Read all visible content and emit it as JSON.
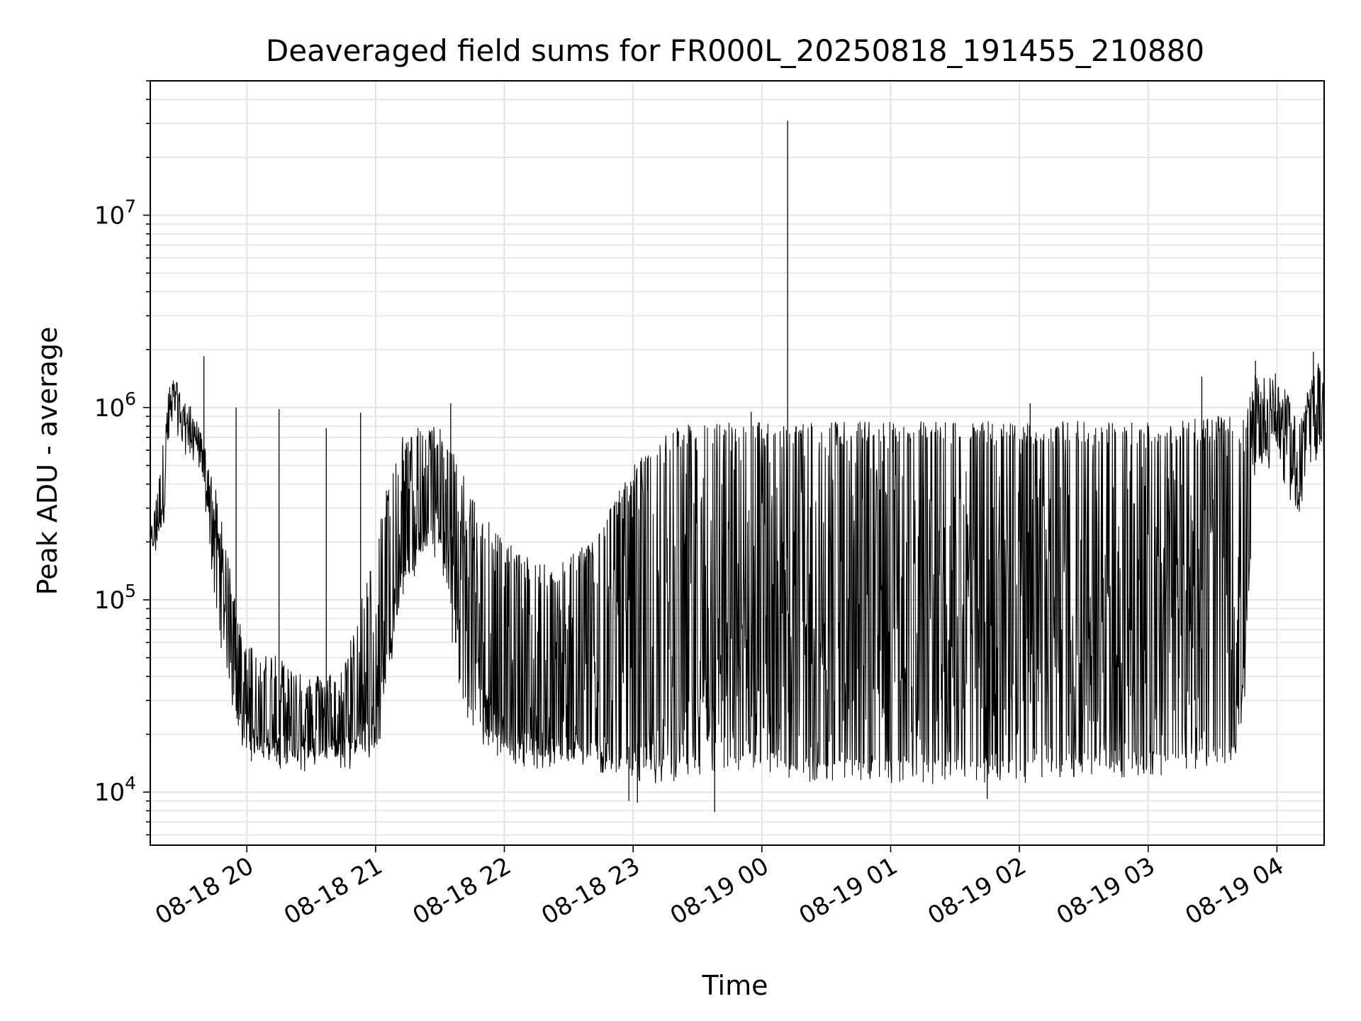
{
  "chart_data": {
    "type": "line",
    "title": "Deaveraged field sums for FR000L_20250818_191455_210880",
    "xlabel": "Time",
    "ylabel": "Peak ADU - average",
    "yscale": "log",
    "grid": true,
    "legend": "none",
    "line_color": "#000000",
    "xlim": [
      "2025-08-18T19:15:00",
      "2025-08-19T04:22:00"
    ],
    "ylim": [
      5300,
      50000000
    ],
    "x_ticks": [
      {
        "value": "2025-08-18T20:00:00",
        "label": "08-18 20"
      },
      {
        "value": "2025-08-18T21:00:00",
        "label": "08-18 21"
      },
      {
        "value": "2025-08-18T22:00:00",
        "label": "08-18 22"
      },
      {
        "value": "2025-08-18T23:00:00",
        "label": "08-18 23"
      },
      {
        "value": "2025-08-19T00:00:00",
        "label": "08-19 00"
      },
      {
        "value": "2025-08-19T01:00:00",
        "label": "08-19 01"
      },
      {
        "value": "2025-08-19T02:00:00",
        "label": "08-19 02"
      },
      {
        "value": "2025-08-19T03:00:00",
        "label": "08-19 03"
      },
      {
        "value": "2025-08-19T04:00:00",
        "label": "08-19 04"
      }
    ],
    "y_ticks": [
      {
        "value": 10000,
        "base": "10",
        "exp": "4"
      },
      {
        "value": 100000,
        "base": "10",
        "exp": "5"
      },
      {
        "value": 1000000,
        "base": "10",
        "exp": "6"
      },
      {
        "value": 10000000,
        "base": "10",
        "exp": "7"
      }
    ],
    "series": [
      {
        "x": [
          "2025-08-18T19:15:00",
          "2025-08-18T19:18:00",
          "2025-08-18T19:21:00",
          "2025-08-18T19:24:00",
          "2025-08-18T19:27:00",
          "2025-08-18T19:30:00",
          "2025-08-18T19:35:00",
          "2025-08-18T19:40:00",
          "2025-08-18T19:45:00",
          "2025-08-18T19:50:00",
          "2025-08-18T19:55:00",
          "2025-08-18T20:00:00",
          "2025-08-18T20:15:00",
          "2025-08-18T20:30:00",
          "2025-08-18T20:45:00",
          "2025-08-18T21:00:00",
          "2025-08-18T21:10:00",
          "2025-08-18T21:20:00",
          "2025-08-18T21:30:00",
          "2025-08-18T21:40:00",
          "2025-08-18T21:50:00",
          "2025-08-18T22:00:00",
          "2025-08-18T22:20:00",
          "2025-08-18T22:40:00",
          "2025-08-18T23:00:00",
          "2025-08-18T23:20:00",
          "2025-08-18T23:40:00",
          "2025-08-19T00:00:00",
          "2025-08-19T00:10:00",
          "2025-08-19T00:20:00",
          "2025-08-19T00:40:00",
          "2025-08-19T01:00:00",
          "2025-08-19T01:20:00",
          "2025-08-19T01:40:00",
          "2025-08-19T02:00:00",
          "2025-08-19T02:20:00",
          "2025-08-19T02:40:00",
          "2025-08-19T03:00:00",
          "2025-08-19T03:20:00",
          "2025-08-19T03:40:00",
          "2025-08-19T03:45:00",
          "2025-08-19T03:50:00",
          "2025-08-19T04:00:00",
          "2025-08-19T04:10:00",
          "2025-08-19T04:20:00",
          "2025-08-19T04:22:00"
        ],
        "y": [
          190000,
          220000,
          350000,
          1000000,
          1300000,
          900000,
          800000,
          550000,
          250000,
          90000,
          45000,
          24000,
          20000,
          19000,
          20000,
          25000,
          120000,
          280000,
          300000,
          180000,
          40000,
          25000,
          20000,
          19000,
          17000,
          30000,
          60000,
          70000,
          90000,
          80000,
          85000,
          80000,
          70000,
          90000,
          100000,
          80000,
          90000,
          100000,
          110000,
          120000,
          45000,
          800000,
          950000,
          450000,
          1200000,
          800000
        ],
        "y_upper": [
          220000,
          400000,
          700000,
          1400000,
          1400000,
          1100000,
          1000000,
          650000,
          400000,
          200000,
          100000,
          60000,
          50000,
          40000,
          45000,
          200000,
          700000,
          800000,
          800000,
          500000,
          300000,
          200000,
          150000,
          200000,
          500000,
          800000,
          850000,
          850000,
          850000,
          850000,
          850000,
          850000,
          850000,
          850000,
          850000,
          850000,
          850000,
          850000,
          900000,
          900000,
          900000,
          1500000,
          1500000,
          900000,
          1800000,
          1300000
        ],
        "y_lower": [
          180000,
          190000,
          250000,
          800000,
          900000,
          700000,
          600000,
          400000,
          120000,
          45000,
          25000,
          17000,
          15000,
          15000,
          15000,
          16000,
          80000,
          180000,
          200000,
          30000,
          20000,
          17000,
          15000,
          15000,
          13000,
          13000,
          14000,
          14000,
          14000,
          13000,
          13000,
          13000,
          13000,
          13000,
          13000,
          14000,
          14000,
          14000,
          15000,
          17000,
          30000,
          500000,
          600000,
          300000,
          700000,
          550000
        ],
        "spikes": [
          {
            "x": "2025-08-18T19:40:00",
            "y": 1850000
          },
          {
            "x": "2025-08-18T19:55:00",
            "y": 1000000
          },
          {
            "x": "2025-08-18T20:15:00",
            "y": 980000
          },
          {
            "x": "2025-08-18T20:37:00",
            "y": 780000
          },
          {
            "x": "2025-08-18T20:53:00",
            "y": 940000
          },
          {
            "x": "2025-08-18T21:35:00",
            "y": 1050000
          },
          {
            "x": "2025-08-18T23:55:00",
            "y": 950000
          },
          {
            "x": "2025-08-19T00:12:00",
            "y": 31000000
          },
          {
            "x": "2025-08-19T02:05:00",
            "y": 1050000
          },
          {
            "x": "2025-08-19T03:25:00",
            "y": 1450000
          },
          {
            "x": "2025-08-19T03:50:00",
            "y": 1750000
          },
          {
            "x": "2025-08-19T04:17:00",
            "y": 1950000
          }
        ],
        "dips": [
          {
            "x": "2025-08-18T22:58:00",
            "y": 9000
          },
          {
            "x": "2025-08-18T23:02:00",
            "y": 8800
          },
          {
            "x": "2025-08-18T23:38:00",
            "y": 7900
          },
          {
            "x": "2025-08-19T01:45:00",
            "y": 9200
          },
          {
            "x": "2025-08-19T02:58:00",
            "y": 12500
          }
        ]
      }
    ]
  }
}
